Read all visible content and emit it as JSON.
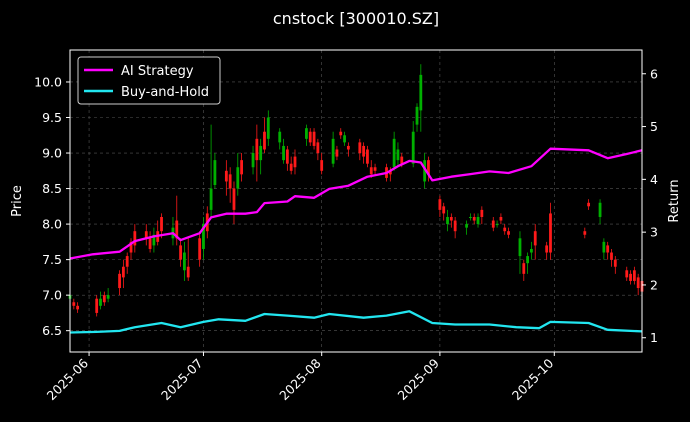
{
  "chart_data": {
    "type": "line",
    "title": "cnstock [300010.SZ]",
    "ylabel_left": "Price",
    "ylabel_right": "Return",
    "xlabel": "",
    "x_ticks": [
      "2025-06",
      "2025-07",
      "2025-08",
      "2025-09",
      "2025-10"
    ],
    "x_range": [
      "2025-05-27",
      "2025-10-24"
    ],
    "y_left_ticks": [
      "6.5",
      "7.0",
      "7.5",
      "8.0",
      "8.5",
      "9.0",
      "9.5",
      "10.0"
    ],
    "y_left_range": [
      6.2,
      10.45
    ],
    "y_right_ticks": [
      "1",
      "2",
      "3",
      "4",
      "5",
      "6"
    ],
    "y_right_range": [
      0.73,
      6.45
    ],
    "grid": true,
    "legend_position": "top-left",
    "colors": {
      "up_candle": "#00b000",
      "down_candle": "#ff1a1a",
      "ai_strategy": "#ff00ff",
      "buy_and_hold": "#22e6f0",
      "grid": "#555555",
      "background": "#000000"
    },
    "series": [
      {
        "name": "AI Strategy",
        "axis": "right",
        "points": [
          [
            "2025-05-27",
            2.5
          ],
          [
            "2025-06-02",
            2.58
          ],
          [
            "2025-06-09",
            2.63
          ],
          [
            "2025-06-13",
            2.83
          ],
          [
            "2025-06-18",
            2.92
          ],
          [
            "2025-06-23",
            2.98
          ],
          [
            "2025-06-25",
            2.85
          ],
          [
            "2025-06-30",
            2.98
          ],
          [
            "2025-07-03",
            3.28
          ],
          [
            "2025-07-07",
            3.35
          ],
          [
            "2025-07-12",
            3.35
          ],
          [
            "2025-07-15",
            3.38
          ],
          [
            "2025-07-17",
            3.55
          ],
          [
            "2025-07-23",
            3.58
          ],
          [
            "2025-07-25",
            3.68
          ],
          [
            "2025-07-30",
            3.65
          ],
          [
            "2025-08-03",
            3.82
          ],
          [
            "2025-08-08",
            3.88
          ],
          [
            "2025-08-13",
            4.05
          ],
          [
            "2025-08-18",
            4.12
          ],
          [
            "2025-08-21",
            4.25
          ],
          [
            "2025-08-24",
            4.35
          ],
          [
            "2025-08-27",
            4.32
          ],
          [
            "2025-08-30",
            3.98
          ],
          [
            "2025-09-04",
            4.05
          ],
          [
            "2025-09-09",
            4.1
          ],
          [
            "2025-09-14",
            4.15
          ],
          [
            "2025-09-19",
            4.12
          ],
          [
            "2025-09-25",
            4.25
          ],
          [
            "2025-09-30",
            4.58
          ],
          [
            "2025-10-10",
            4.55
          ],
          [
            "2025-10-15",
            4.4
          ],
          [
            "2025-10-20",
            4.48
          ],
          [
            "2025-10-24",
            4.55
          ]
        ]
      },
      {
        "name": "Buy-and-Hold",
        "axis": "right",
        "points": [
          [
            "2025-05-27",
            1.1
          ],
          [
            "2025-06-03",
            1.11
          ],
          [
            "2025-06-09",
            1.13
          ],
          [
            "2025-06-13",
            1.2
          ],
          [
            "2025-06-20",
            1.28
          ],
          [
            "2025-06-25",
            1.2
          ],
          [
            "2025-07-01",
            1.3
          ],
          [
            "2025-07-05",
            1.35
          ],
          [
            "2025-07-12",
            1.32
          ],
          [
            "2025-07-17",
            1.45
          ],
          [
            "2025-07-23",
            1.42
          ],
          [
            "2025-07-30",
            1.38
          ],
          [
            "2025-08-03",
            1.45
          ],
          [
            "2025-08-12",
            1.38
          ],
          [
            "2025-08-18",
            1.42
          ],
          [
            "2025-08-24",
            1.5
          ],
          [
            "2025-08-30",
            1.28
          ],
          [
            "2025-09-05",
            1.25
          ],
          [
            "2025-09-14",
            1.25
          ],
          [
            "2025-09-21",
            1.2
          ],
          [
            "2025-09-27",
            1.18
          ],
          [
            "2025-09-30",
            1.3
          ],
          [
            "2025-10-10",
            1.28
          ],
          [
            "2025-10-15",
            1.15
          ],
          [
            "2025-10-24",
            1.12
          ]
        ]
      }
    ],
    "candles": [
      [
        "2025-05-27",
        6.95,
        7.0,
        6.8,
        7.05
      ],
      [
        "2025-05-28",
        6.9,
        6.85,
        6.8,
        6.95
      ],
      [
        "2025-05-29",
        6.85,
        6.8,
        6.75,
        6.9
      ],
      [
        "2025-06-03",
        6.95,
        6.75,
        6.7,
        7.0
      ],
      [
        "2025-06-04",
        6.85,
        6.95,
        6.8,
        7.05
      ],
      [
        "2025-06-05",
        7.0,
        6.9,
        6.85,
        7.05
      ],
      [
        "2025-06-06",
        6.95,
        7.0,
        6.9,
        7.1
      ],
      [
        "2025-06-09",
        7.3,
        7.1,
        7.0,
        7.35
      ],
      [
        "2025-06-10",
        7.4,
        7.25,
        7.1,
        7.5
      ],
      [
        "2025-06-11",
        7.55,
        7.4,
        7.3,
        7.6
      ],
      [
        "2025-06-12",
        7.75,
        7.6,
        7.5,
        7.8
      ],
      [
        "2025-06-13",
        7.9,
        7.7,
        7.6,
        8.0
      ],
      [
        "2025-06-16",
        7.9,
        7.8,
        7.7,
        8.0
      ],
      [
        "2025-06-17",
        7.8,
        7.65,
        7.6,
        7.9
      ],
      [
        "2025-06-18",
        7.7,
        7.85,
        7.6,
        7.95
      ],
      [
        "2025-06-19",
        7.9,
        7.75,
        7.7,
        8.05
      ],
      [
        "2025-06-20",
        8.1,
        7.9,
        7.8,
        8.15
      ],
      [
        "2025-06-23",
        7.8,
        7.95,
        7.7,
        8.1
      ],
      [
        "2025-06-24",
        8.05,
        7.8,
        7.7,
        8.4
      ],
      [
        "2025-06-25",
        7.7,
        7.5,
        7.4,
        7.8
      ],
      [
        "2025-06-26",
        7.35,
        7.6,
        7.2,
        7.75
      ],
      [
        "2025-06-27",
        7.4,
        7.25,
        7.2,
        7.8
      ],
      [
        "2025-06-30",
        7.8,
        7.5,
        7.4,
        7.9
      ],
      [
        "2025-07-01",
        7.65,
        8.0,
        7.5,
        8.1
      ],
      [
        "2025-07-02",
        8.15,
        7.9,
        7.8,
        8.25
      ],
      [
        "2025-07-03",
        8.2,
        8.5,
        8.1,
        9.4
      ],
      [
        "2025-07-04",
        8.55,
        8.9,
        8.5,
        9.0
      ],
      [
        "2025-07-07",
        8.75,
        8.6,
        8.4,
        8.9
      ],
      [
        "2025-07-08",
        8.7,
        8.5,
        8.3,
        8.8
      ],
      [
        "2025-07-09",
        8.5,
        8.2,
        8.0,
        8.6
      ],
      [
        "2025-07-10",
        8.5,
        8.8,
        8.4,
        9.0
      ],
      [
        "2025-07-11",
        8.9,
        8.7,
        8.6,
        9.0
      ],
      [
        "2025-07-14",
        8.8,
        9.0,
        8.7,
        9.1
      ],
      [
        "2025-07-15",
        9.2,
        8.9,
        8.6,
        9.4
      ],
      [
        "2025-07-16",
        8.9,
        9.1,
        8.7,
        9.2
      ],
      [
        "2025-07-17",
        9.3,
        9.05,
        9.0,
        9.5
      ],
      [
        "2025-07-18",
        9.2,
        9.5,
        9.1,
        9.6
      ],
      [
        "2025-07-21",
        9.15,
        9.3,
        9.05,
        9.35
      ],
      [
        "2025-07-22",
        8.9,
        9.1,
        8.85,
        9.2
      ],
      [
        "2025-07-23",
        9.05,
        8.85,
        8.75,
        9.1
      ],
      [
        "2025-07-24",
        8.85,
        8.75,
        8.7,
        8.95
      ],
      [
        "2025-07-25",
        8.95,
        8.8,
        8.7,
        9.05
      ],
      [
        "2025-07-28",
        9.2,
        9.35,
        9.1,
        9.4
      ],
      [
        "2025-07-29",
        9.3,
        9.15,
        9.1,
        9.35
      ],
      [
        "2025-07-30",
        9.3,
        9.1,
        9.05,
        9.35
      ],
      [
        "2025-07-31",
        9.15,
        9.0,
        8.9,
        9.2
      ],
      [
        "2025-08-01",
        8.9,
        8.75,
        8.7,
        9.0
      ],
      [
        "2025-08-04",
        8.85,
        9.2,
        8.8,
        9.3
      ],
      [
        "2025-08-05",
        9.05,
        8.95,
        8.9,
        9.1
      ],
      [
        "2025-08-06",
        9.3,
        9.25,
        9.2,
        9.35
      ],
      [
        "2025-08-07",
        9.15,
        9.25,
        9.1,
        9.3
      ],
      [
        "2025-08-08",
        9.1,
        9.05,
        8.95,
        9.15
      ],
      [
        "2025-08-11",
        9.15,
        9.0,
        8.9,
        9.2
      ],
      [
        "2025-08-12",
        9.1,
        8.95,
        8.85,
        9.15
      ],
      [
        "2025-08-13",
        9.05,
        8.85,
        8.8,
        9.1
      ],
      [
        "2025-08-14",
        8.8,
        8.7,
        8.65,
        8.9
      ],
      [
        "2025-08-15",
        8.8,
        8.75,
        8.7,
        8.85
      ],
      [
        "2025-08-18",
        8.8,
        8.65,
        8.6,
        8.85
      ],
      [
        "2025-08-19",
        8.75,
        8.7,
        8.6,
        8.8
      ],
      [
        "2025-08-20",
        8.8,
        9.2,
        8.75,
        9.3
      ],
      [
        "2025-08-21",
        8.9,
        9.05,
        8.8,
        9.15
      ],
      [
        "2025-08-22",
        8.95,
        8.85,
        8.8,
        9.0
      ],
      [
        "2025-08-25",
        8.85,
        9.3,
        8.8,
        9.45
      ],
      [
        "2025-08-26",
        9.4,
        9.65,
        9.3,
        9.7
      ],
      [
        "2025-08-27",
        9.6,
        10.1,
        9.3,
        10.25
      ],
      [
        "2025-08-28",
        8.6,
        8.9,
        8.5,
        9.0
      ],
      [
        "2025-08-29",
        8.9,
        8.7,
        8.6,
        8.95
      ],
      [
        "2025-09-01",
        8.35,
        8.2,
        8.1,
        8.4
      ],
      [
        "2025-09-02",
        8.25,
        8.15,
        8.05,
        8.3
      ],
      [
        "2025-09-03",
        8.0,
        8.1,
        7.9,
        8.2
      ],
      [
        "2025-09-04",
        8.1,
        8.05,
        7.95,
        8.15
      ],
      [
        "2025-09-05",
        8.05,
        7.9,
        7.8,
        8.1
      ],
      [
        "2025-09-08",
        7.95,
        8.0,
        7.85,
        8.05
      ],
      [
        "2025-09-09",
        8.1,
        8.1,
        8.05,
        8.15
      ],
      [
        "2025-09-10",
        8.1,
        8.05,
        8.0,
        8.15
      ],
      [
        "2025-09-11",
        8.0,
        8.1,
        7.95,
        8.15
      ],
      [
        "2025-09-12",
        8.2,
        8.1,
        8.0,
        8.25
      ],
      [
        "2025-09-15",
        8.05,
        7.95,
        7.9,
        8.1
      ],
      [
        "2025-09-16",
        8.0,
        8.0,
        7.95,
        8.05
      ],
      [
        "2025-09-17",
        8.1,
        8.05,
        8.0,
        8.15
      ],
      [
        "2025-09-18",
        7.95,
        7.9,
        7.85,
        8.0
      ],
      [
        "2025-09-19",
        7.9,
        7.85,
        7.8,
        7.95
      ],
      [
        "2025-09-22",
        7.55,
        7.8,
        7.3,
        7.9
      ],
      [
        "2025-09-23",
        7.45,
        7.3,
        7.2,
        7.5
      ],
      [
        "2025-09-24",
        7.45,
        7.55,
        7.3,
        7.6
      ],
      [
        "2025-09-25",
        7.6,
        7.65,
        7.5,
        7.75
      ],
      [
        "2025-09-26",
        7.9,
        7.7,
        7.5,
        8.0
      ],
      [
        "2025-09-29",
        7.7,
        7.6,
        7.5,
        7.75
      ],
      [
        "2025-09-30",
        8.15,
        7.6,
        7.5,
        8.3
      ],
      [
        "2025-10-09",
        7.9,
        7.85,
        7.8,
        7.95
      ],
      [
        "2025-10-10",
        8.3,
        8.25,
        8.2,
        8.35
      ],
      [
        "2025-10-13",
        8.1,
        8.3,
        8.0,
        8.35
      ],
      [
        "2025-10-14",
        7.6,
        7.75,
        7.5,
        7.8
      ],
      [
        "2025-10-15",
        7.7,
        7.6,
        7.5,
        7.75
      ],
      [
        "2025-10-16",
        7.6,
        7.5,
        7.4,
        7.65
      ],
      [
        "2025-10-17",
        7.5,
        7.4,
        7.3,
        7.55
      ],
      [
        "2025-10-20",
        7.35,
        7.25,
        7.2,
        7.4
      ],
      [
        "2025-10-21",
        7.3,
        7.2,
        7.15,
        7.35
      ],
      [
        "2025-10-22",
        7.35,
        7.2,
        7.15,
        7.4
      ],
      [
        "2025-10-23",
        7.25,
        7.1,
        7.0,
        7.3
      ],
      [
        "2025-10-24",
        7.2,
        7.05,
        7.0,
        7.25
      ]
    ]
  }
}
